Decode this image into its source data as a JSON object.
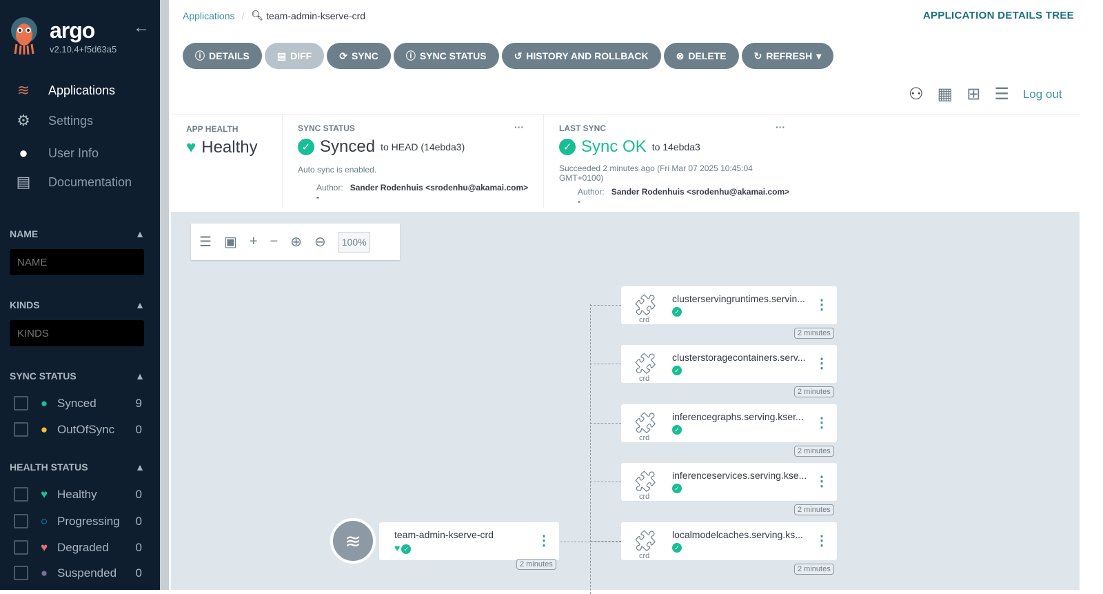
{
  "sidebar": {
    "brand": "argo",
    "version": "v2.10.4+f5d63a5",
    "nav": [
      {
        "label": "Applications",
        "icon": "layers-icon"
      },
      {
        "label": "Settings",
        "icon": "gear-icon"
      },
      {
        "label": "User Info",
        "icon": "user-icon"
      },
      {
        "label": "Documentation",
        "icon": "book-icon"
      }
    ],
    "filters": {
      "name_title": "NAME",
      "name_placeholder": "NAME",
      "kinds_title": "KINDS",
      "kinds_placeholder": "KINDS",
      "sync_title": "SYNC STATUS",
      "sync": [
        {
          "label": "Synced",
          "count": "9",
          "color": "#18be94"
        },
        {
          "label": "OutOfSync",
          "count": "0",
          "color": "#f4c030"
        }
      ],
      "health_title": "HEALTH STATUS",
      "health": [
        {
          "label": "Healthy",
          "count": "0",
          "color": "#18be94"
        },
        {
          "label": "Progressing",
          "count": "0",
          "color": "#0dadea"
        },
        {
          "label": "Degraded",
          "count": "0",
          "color": "#e96d76"
        },
        {
          "label": "Suspended",
          "count": "0",
          "color": "#766f94"
        }
      ]
    }
  },
  "header": {
    "breadcrumb_root": "Applications",
    "breadcrumb_app": "team-admin-kserve-crd",
    "title": "APPLICATION DETAILS TREE"
  },
  "toolbar": [
    "DETAILS",
    "DIFF",
    "SYNC",
    "SYNC STATUS",
    "HISTORY AND ROLLBACK",
    "DELETE",
    "REFRESH"
  ],
  "views": {
    "logout": "Log out"
  },
  "status": {
    "health_title": "APP HEALTH",
    "health": "Healthy",
    "sync_title": "SYNC STATUS",
    "sync": "Synced",
    "sync_target": "to HEAD (14ebda3)",
    "auto": "Auto sync is enabled.",
    "author_label": "Author:",
    "author": "Sander Rodenhuis <srodenhu@akamai.com> -",
    "last_title": "LAST SYNC",
    "last": "Sync OK",
    "last_target": "to 14ebda3",
    "succeeded": "Succeeded 2 minutes ago (Fri Mar 07 2025 10:45:04 GMT+0100)",
    "last_author": "Sander Rodenhuis <srodenhu@akamai.com> -"
  },
  "graph": {
    "zoom": "100%",
    "root": {
      "name": "team-admin-kserve-crd",
      "age": "2 minutes"
    },
    "nodes": [
      {
        "name": "clusterservingruntimes.servin...",
        "kind": "crd",
        "age": "2 minutes"
      },
      {
        "name": "clusterstoragecontainers.serv...",
        "kind": "crd",
        "age": "2 minutes"
      },
      {
        "name": "inferencegraphs.serving.kser...",
        "kind": "crd",
        "age": "2 minutes"
      },
      {
        "name": "inferenceservices.serving.kse...",
        "kind": "crd",
        "age": "2 minutes"
      },
      {
        "name": "localmodelcaches.serving.ks...",
        "kind": "crd",
        "age": "2 minutes"
      }
    ]
  }
}
